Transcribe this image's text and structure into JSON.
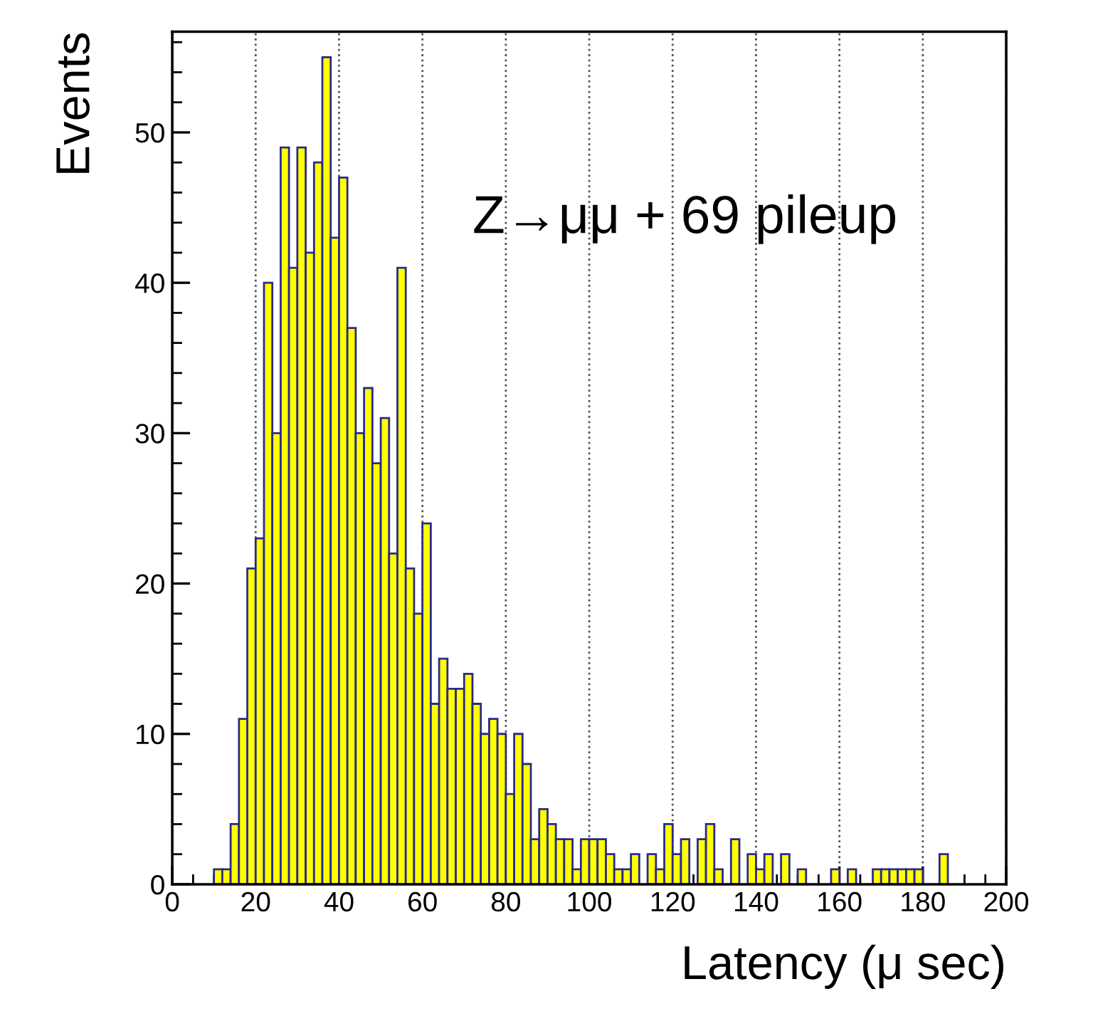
{
  "chart_data": {
    "type": "histogram",
    "xlabel": "Latency (μ sec)",
    "ylabel": "Events",
    "annotations": [
      "Z→μμ + 69 pileup"
    ],
    "bins": [
      10,
      12,
      14,
      16,
      18,
      20,
      22,
      24,
      26,
      28,
      30,
      32,
      34,
      36,
      38,
      40,
      42,
      44,
      46,
      48,
      50,
      52,
      54,
      56,
      58,
      60,
      62,
      64,
      66,
      68,
      70,
      72,
      74,
      76,
      78,
      80,
      82,
      84,
      86,
      88,
      90,
      92,
      94,
      96,
      98,
      100,
      102,
      104,
      106,
      108,
      110,
      112,
      114,
      116,
      118,
      120,
      122,
      124,
      126,
      128,
      130,
      132,
      134,
      136,
      138,
      140,
      142,
      144,
      146,
      148,
      150,
      152,
      154,
      156,
      158,
      160,
      162,
      164,
      166,
      168,
      170,
      172,
      174,
      176,
      178,
      180,
      182,
      184,
      186
    ],
    "values": [
      1,
      1,
      4,
      11,
      21,
      23,
      40,
      30,
      49,
      41,
      49,
      42,
      48,
      55,
      43,
      47,
      37,
      30,
      33,
      28,
      31,
      22,
      41,
      21,
      18,
      24,
      12,
      15,
      13,
      13,
      14,
      12,
      10,
      11,
      10,
      6,
      10,
      8,
      3,
      5,
      4,
      3,
      3,
      1,
      3,
      3,
      3,
      2,
      1,
      1,
      2,
      0,
      2,
      1,
      4,
      2,
      3,
      0,
      3,
      4,
      1,
      0,
      3,
      0,
      2,
      1,
      2,
      0,
      2,
      0,
      1,
      0,
      0,
      0,
      1,
      0,
      1,
      0,
      0,
      1,
      1,
      1,
      1,
      1,
      1,
      0,
      0,
      2
    ],
    "color": "#ffff00",
    "xlim": [
      0,
      200
    ],
    "xticks": [
      0,
      20,
      40,
      60,
      80,
      100,
      120,
      140,
      160,
      180,
      200
    ],
    "ylim": [
      0,
      56.7
    ],
    "yticks": [
      0,
      10,
      20,
      30,
      40,
      50
    ],
    "grid": "x"
  }
}
